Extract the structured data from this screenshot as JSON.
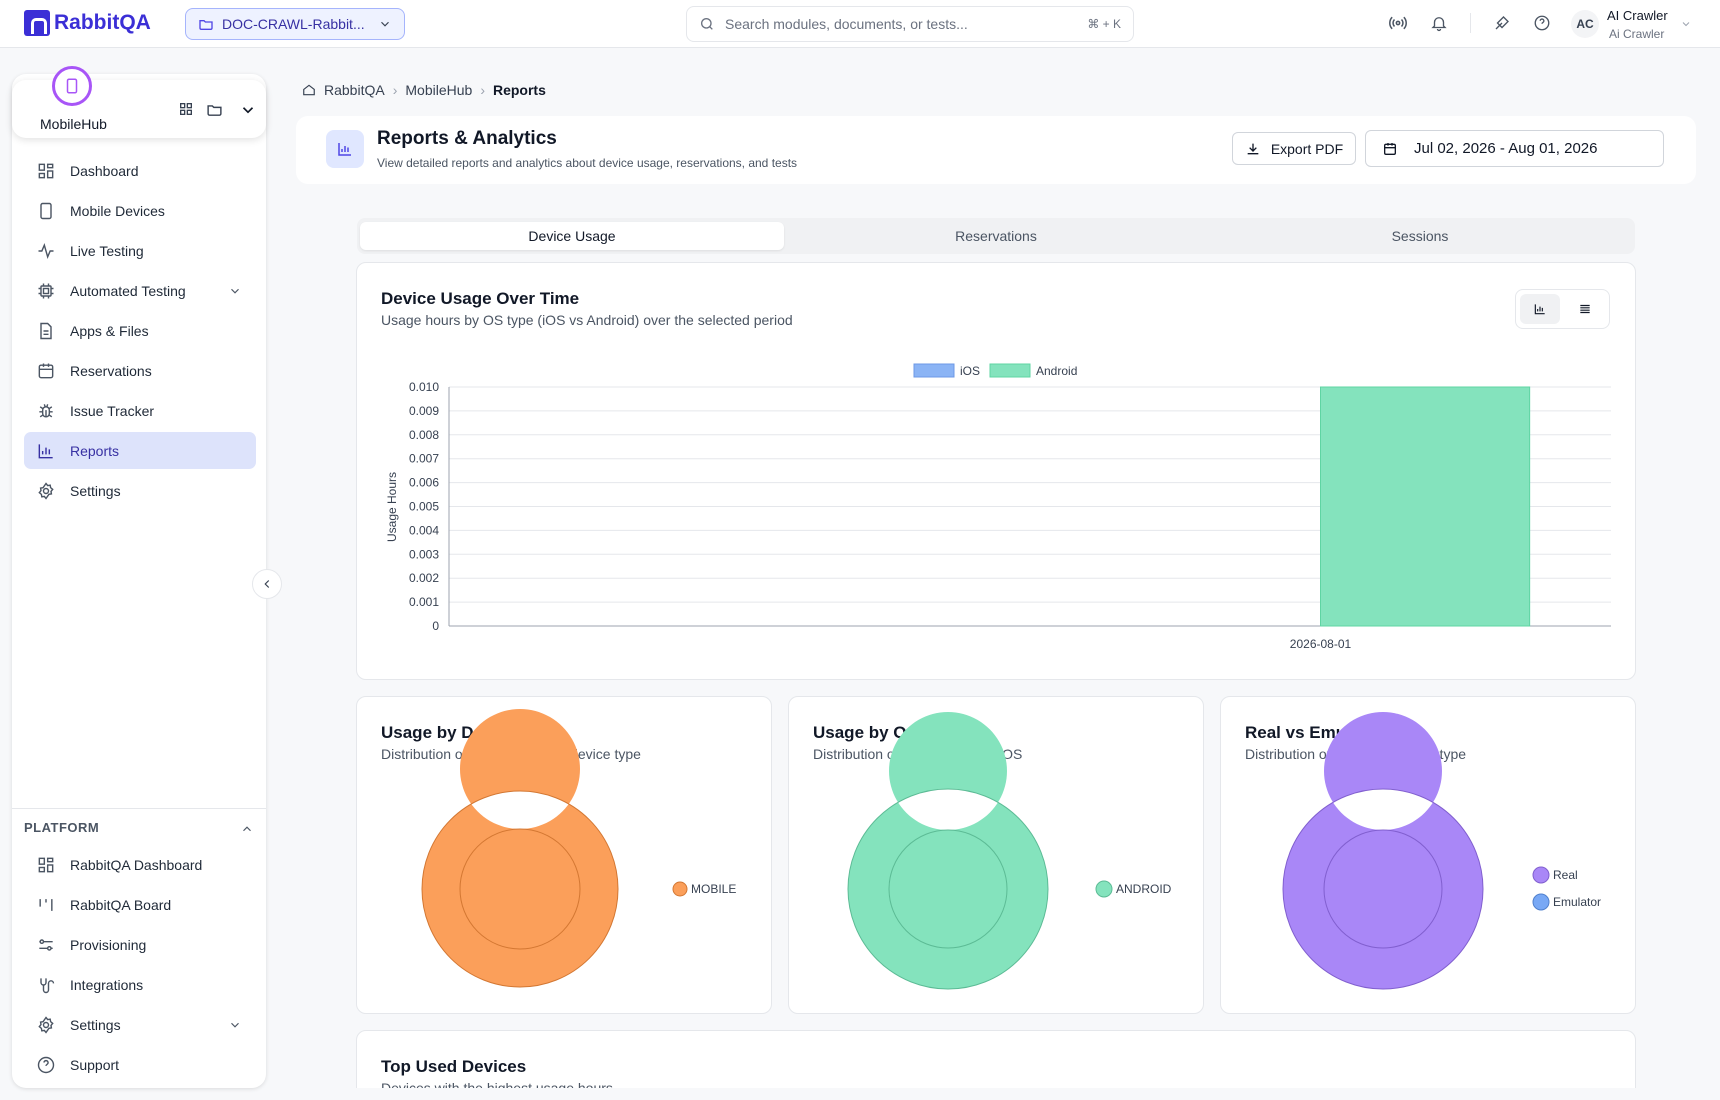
{
  "app": {
    "name": "RabbitQA"
  },
  "project": {
    "name": "DOC-CRAWL-Rabbit..."
  },
  "search": {
    "placeholder": "Search modules, documents, or tests...",
    "shortcut": "⌘ + K"
  },
  "user": {
    "initials": "AC",
    "name": "AI Crawler",
    "subtitle": "Ai Crawler"
  },
  "module": {
    "name": "MobileHub"
  },
  "nav": [
    {
      "label": "Dashboard",
      "icon": "dashboard-icon"
    },
    {
      "label": "Mobile Devices",
      "icon": "phone-icon"
    },
    {
      "label": "Live Testing",
      "icon": "activity-icon"
    },
    {
      "label": "Automated Testing",
      "icon": "cpu-icon",
      "expandable": true
    },
    {
      "label": "Apps & Files",
      "icon": "file-icon"
    },
    {
      "label": "Reservations",
      "icon": "calendar-icon"
    },
    {
      "label": "Issue Tracker",
      "icon": "bug-icon"
    },
    {
      "label": "Reports",
      "icon": "bar-chart-icon",
      "active": true
    },
    {
      "label": "Settings",
      "icon": "gear-icon"
    }
  ],
  "platform": {
    "heading": "PLATFORM",
    "items": [
      {
        "label": "RabbitQA Dashboard",
        "icon": "dashboard-icon"
      },
      {
        "label": "RabbitQA Board",
        "icon": "board-icon"
      },
      {
        "label": "Provisioning",
        "icon": "sliders-icon"
      },
      {
        "label": "Integrations",
        "icon": "plug-icon"
      },
      {
        "label": "Settings",
        "icon": "gear-icon",
        "expandable": true
      },
      {
        "label": "Support",
        "icon": "help-icon"
      }
    ]
  },
  "breadcrumb": [
    "RabbitQA",
    "MobileHub",
    "Reports"
  ],
  "page": {
    "title": "Reports & Analytics",
    "subtitle": "View detailed reports and analytics about device usage, reservations, and tests",
    "export_label": "Export PDF",
    "date_range": "Jul 02, 2026 - Aug 01, 2026"
  },
  "tabs": [
    "Device Usage",
    "Reservations",
    "Sessions"
  ],
  "usage_card": {
    "title": "Device Usage Over Time",
    "subtitle": "Usage hours by OS type (iOS vs Android) over the selected period"
  },
  "device_type_card": {
    "title": "Usage by Device Type",
    "subtitle": "Distribution of usage hours by device type"
  },
  "os_type_card": {
    "title": "Usage by OS Type",
    "subtitle": "Distribution of usage hours by OS"
  },
  "real_card": {
    "title": "Real vs Emulator",
    "subtitle": "Distribution of usage by device type"
  },
  "top_devices_card": {
    "title": "Top Used Devices",
    "subtitle": "Devices with the highest usage hours"
  },
  "colors": {
    "ios": "#8bb4f5",
    "android": "#84e3bd",
    "mobile": "#fb9f5a",
    "real": "#a987f7",
    "emulator": "#78a8f5"
  },
  "chart_data": [
    {
      "type": "bar",
      "categories": [
        "",
        "2026-08-01"
      ],
      "series": [
        {
          "name": "iOS",
          "values": [
            0,
            0
          ]
        },
        {
          "name": "Android",
          "values": [
            0,
            0.01
          ]
        }
      ],
      "ylabel": "Usage Hours",
      "ylim": [
        0,
        0.01
      ],
      "yticks": [
        "0",
        "0.001",
        "0.002",
        "0.003",
        "0.004",
        "0.005",
        "0.006",
        "0.007",
        "0.008",
        "0.009",
        "0.010"
      ],
      "legend": "top-center",
      "grid": true
    },
    {
      "type": "pie",
      "donut": true,
      "labels": [
        "MOBILE"
      ],
      "values": [
        100
      ],
      "legend": "right"
    },
    {
      "type": "pie",
      "donut": true,
      "labels": [
        "ANDROID"
      ],
      "values": [
        100
      ],
      "legend": "right"
    },
    {
      "type": "pie",
      "donut": true,
      "labels": [
        "Real",
        "Emulator"
      ],
      "values": [
        100,
        0
      ],
      "legend": "right"
    }
  ]
}
